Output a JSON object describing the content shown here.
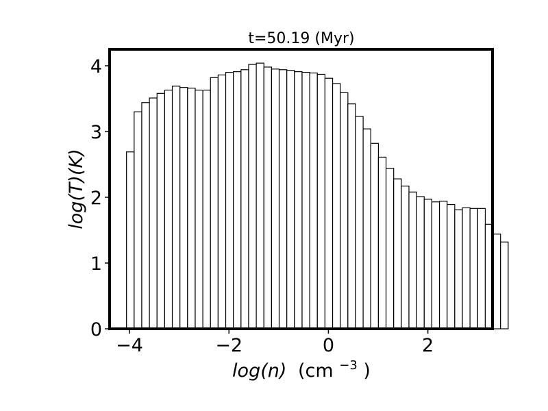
{
  "chart_data": {
    "type": "bar",
    "title": "t=50.19 (Myr)",
    "xlabel": {
      "italic": "log(n)",
      "unit": "(cm",
      "exponent": "−3",
      "close": ")"
    },
    "ylabel": "log(T)(K)",
    "xlim": [
      -4.4,
      3.3
    ],
    "ylim": [
      0,
      4.25
    ],
    "xticks": [
      {
        "value": -4,
        "label": "−4"
      },
      {
        "value": -2,
        "label": "−2"
      },
      {
        "value": 0,
        "label": "0"
      },
      {
        "value": 2,
        "label": "2"
      }
    ],
    "yticks": [
      {
        "value": 0,
        "label": "0"
      },
      {
        "value": 1,
        "label": "1"
      },
      {
        "value": 2,
        "label": "2"
      },
      {
        "value": 3,
        "label": "3"
      },
      {
        "value": 4,
        "label": "4"
      }
    ],
    "grid": false,
    "bin_start": -4.06,
    "bin_width": 0.1535,
    "values": [
      2.69,
      3.3,
      3.44,
      3.51,
      3.58,
      3.63,
      3.69,
      3.67,
      3.66,
      3.63,
      3.63,
      3.82,
      3.86,
      3.9,
      3.91,
      3.94,
      4.02,
      4.04,
      3.98,
      3.95,
      3.94,
      3.93,
      3.91,
      3.9,
      3.89,
      3.87,
      3.81,
      3.73,
      3.59,
      3.42,
      3.23,
      3.04,
      2.82,
      2.61,
      2.44,
      2.28,
      2.17,
      2.08,
      2.01,
      1.97,
      1.93,
      1.94,
      1.89,
      1.81,
      1.84,
      1.83,
      1.83,
      1.59,
      1.44,
      1.32
    ]
  }
}
